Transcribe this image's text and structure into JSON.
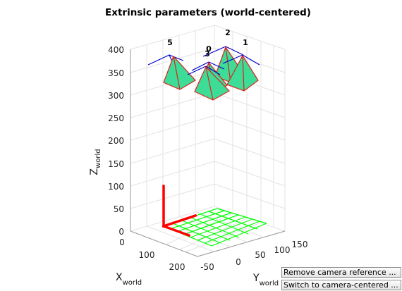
{
  "figure": {
    "title": "Extrinsic parameters (world-centered)",
    "z_axis": {
      "label": "Z",
      "sub": "world",
      "ticks": [
        "0",
        "50",
        "100",
        "150",
        "200",
        "250",
        "300",
        "350",
        "400"
      ]
    },
    "x_axis": {
      "label": "X",
      "sub": "world",
      "ticks": [
        "0",
        "100",
        "200"
      ]
    },
    "y_axis": {
      "label": "Y",
      "sub": "world",
      "ticks": [
        "-50",
        "0",
        "50",
        "100",
        "150"
      ]
    },
    "cameras": [
      {
        "id": "5"
      },
      {
        "id": "2"
      },
      {
        "id": "1"
      },
      {
        "id": "0"
      },
      {
        "id": "3"
      }
    ],
    "colors": {
      "pyramid_fill": "#3ddc97",
      "pyramid_edge": "#e0201b",
      "camera_axis": "#0000cc",
      "pattern_grid": "#00ff00",
      "frame_axis": "#ff0000",
      "grid_lines": "#e6e6e6"
    }
  },
  "buttons": {
    "remove_camera_reference": "Remove camera reference ...",
    "switch_camera_centered": "Switch to camera-centered ..."
  }
}
